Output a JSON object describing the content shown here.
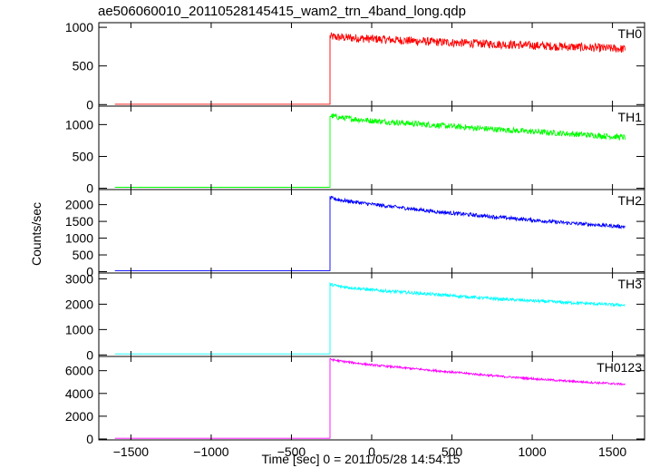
{
  "chart_data": {
    "type": "line",
    "title": "ae506060010_20110528145415_wam2_trn_4band_long.qdp",
    "xlabel": "Time [sec] 0 = 2011/05/28 14:54:15",
    "ylabel": "Counts/sec",
    "xlim": [
      -1700,
      1700
    ],
    "xticks": [
      -1500,
      -1000,
      -500,
      0,
      500,
      1000,
      1500
    ],
    "xtick_labels": [
      "−1500",
      "−1000",
      "−500",
      "0",
      "500",
      "1000",
      "1500"
    ],
    "grid": false,
    "panels": [
      {
        "name": "TH0",
        "color": "#ff0000",
        "ylim": [
          -20,
          1060
        ],
        "yticks": [
          0,
          500,
          1000
        ],
        "step_time": -260,
        "pre_level": 5,
        "series_x": [
          -260,
          -200,
          0,
          400,
          800,
          1200,
          1580
        ],
        "series_y": [
          880,
          870,
          850,
          810,
          780,
          750,
          720
        ],
        "noise": 55
      },
      {
        "name": "TH1",
        "color": "#00ff00",
        "ylim": [
          -20,
          1290
        ],
        "yticks": [
          0,
          500,
          1000
        ],
        "step_time": -260,
        "pre_level": 15,
        "series_x": [
          -260,
          -200,
          0,
          400,
          800,
          1200,
          1580
        ],
        "series_y": [
          1140,
          1110,
          1060,
          990,
          920,
          860,
          800
        ],
        "noise": 45
      },
      {
        "name": "TH2",
        "color": "#0000ff",
        "ylim": [
          -40,
          2450
        ],
        "yticks": [
          0,
          500,
          1000,
          1500,
          2000
        ],
        "step_time": -260,
        "pre_level": 30,
        "series_x": [
          -260,
          -200,
          0,
          400,
          800,
          1200,
          1580
        ],
        "series_y": [
          2200,
          2140,
          2010,
          1790,
          1620,
          1460,
          1340
        ],
        "noise": 55
      },
      {
        "name": "TH3",
        "color": "#00ffff",
        "ylim": [
          -60,
          3230
        ],
        "yticks": [
          0,
          1000,
          2000,
          3000
        ],
        "step_time": -260,
        "pre_level": 40,
        "series_x": [
          -260,
          -200,
          0,
          400,
          800,
          1200,
          1580
        ],
        "series_y": [
          2780,
          2700,
          2560,
          2380,
          2200,
          2070,
          1960
        ],
        "noise": 60
      },
      {
        "name": "TH0123",
        "color": "#ff00ff",
        "ylim": [
          -80,
          7250
        ],
        "yticks": [
          0,
          2000,
          4000,
          6000
        ],
        "step_time": -260,
        "pre_level": 60,
        "series_x": [
          -260,
          -200,
          0,
          400,
          800,
          1200,
          1580
        ],
        "series_y": [
          7000,
          6850,
          6500,
          6000,
          5500,
          5100,
          4800
        ],
        "noise": 90
      }
    ]
  }
}
